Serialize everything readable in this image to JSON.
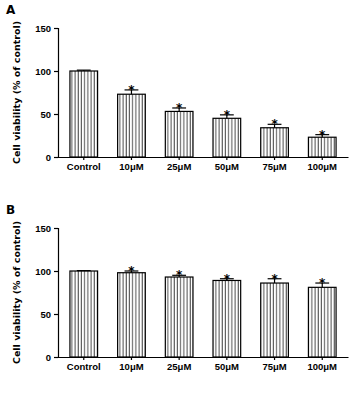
{
  "chart_data": [
    {
      "type": "bar",
      "title": "A",
      "y_label": "Cell viability (% of control)",
      "categories": [
        "Control",
        "10μM",
        "25μM",
        "50μM",
        "75μM",
        "100μM"
      ],
      "values": [
        100,
        73,
        53,
        45,
        34,
        23
      ],
      "errors": [
        1,
        5,
        4,
        4,
        4,
        3
      ],
      "annotations": [
        null,
        "*",
        "*",
        "*",
        "*",
        "*"
      ],
      "color": "#000000",
      "ylim": [
        0,
        150
      ],
      "yticks": [
        0,
        50,
        100,
        150
      ],
      "grid": false
    },
    {
      "type": "bar",
      "title": "B",
      "y_label": "Cell viability (% of control)",
      "categories": [
        "Control",
        "10μM",
        "25μM",
        "50μM",
        "75μM",
        "100μM"
      ],
      "values": [
        100,
        98,
        93,
        89,
        86,
        81
      ],
      "errors": [
        0.5,
        2,
        2,
        2,
        5,
        5
      ],
      "annotations": [
        null,
        "*",
        "*",
        "*",
        "*",
        "*"
      ],
      "color": "#000000",
      "ylim": [
        0,
        150
      ],
      "yticks": [
        0,
        50,
        100,
        150
      ],
      "grid": false
    }
  ]
}
